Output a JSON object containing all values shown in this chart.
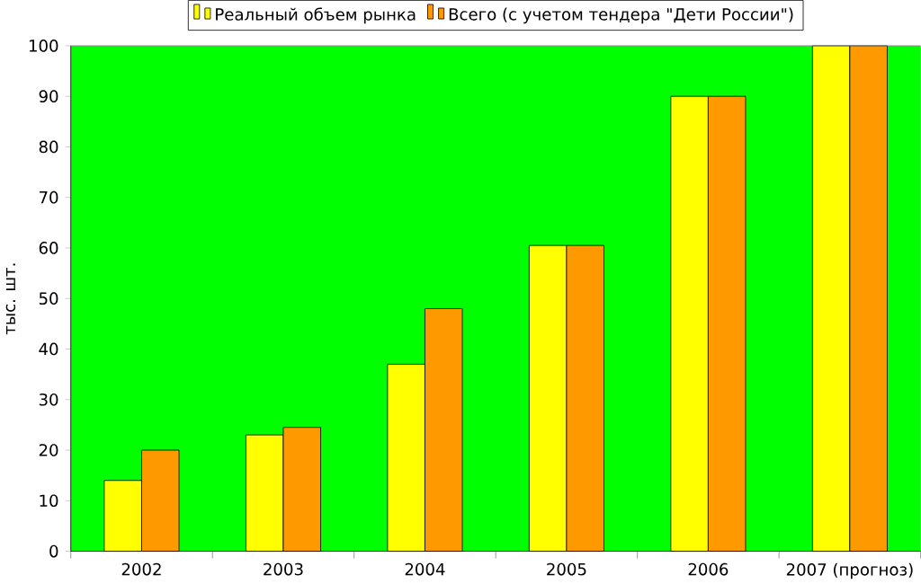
{
  "chart_data": {
    "type": "bar",
    "ylabel": "тыс. шт.",
    "categories": [
      "2002",
      "2003",
      "2004",
      "2005",
      "2006",
      "2007 (прогноз)"
    ],
    "series": [
      {
        "name": "Реальный объем рынка",
        "color": "#ffff00",
        "values": [
          14,
          23,
          37,
          60.5,
          90,
          100
        ]
      },
      {
        "name": "Всего (с учетом тендера \"Дети России\")",
        "color": "#ff9900",
        "values": [
          20,
          24.5,
          48,
          60.5,
          90,
          100
        ]
      }
    ],
    "ylim": [
      0,
      100
    ],
    "yticks": [
      0,
      10,
      20,
      30,
      40,
      50,
      60,
      70,
      80,
      90,
      100
    ],
    "grid": false,
    "legend": "top"
  }
}
